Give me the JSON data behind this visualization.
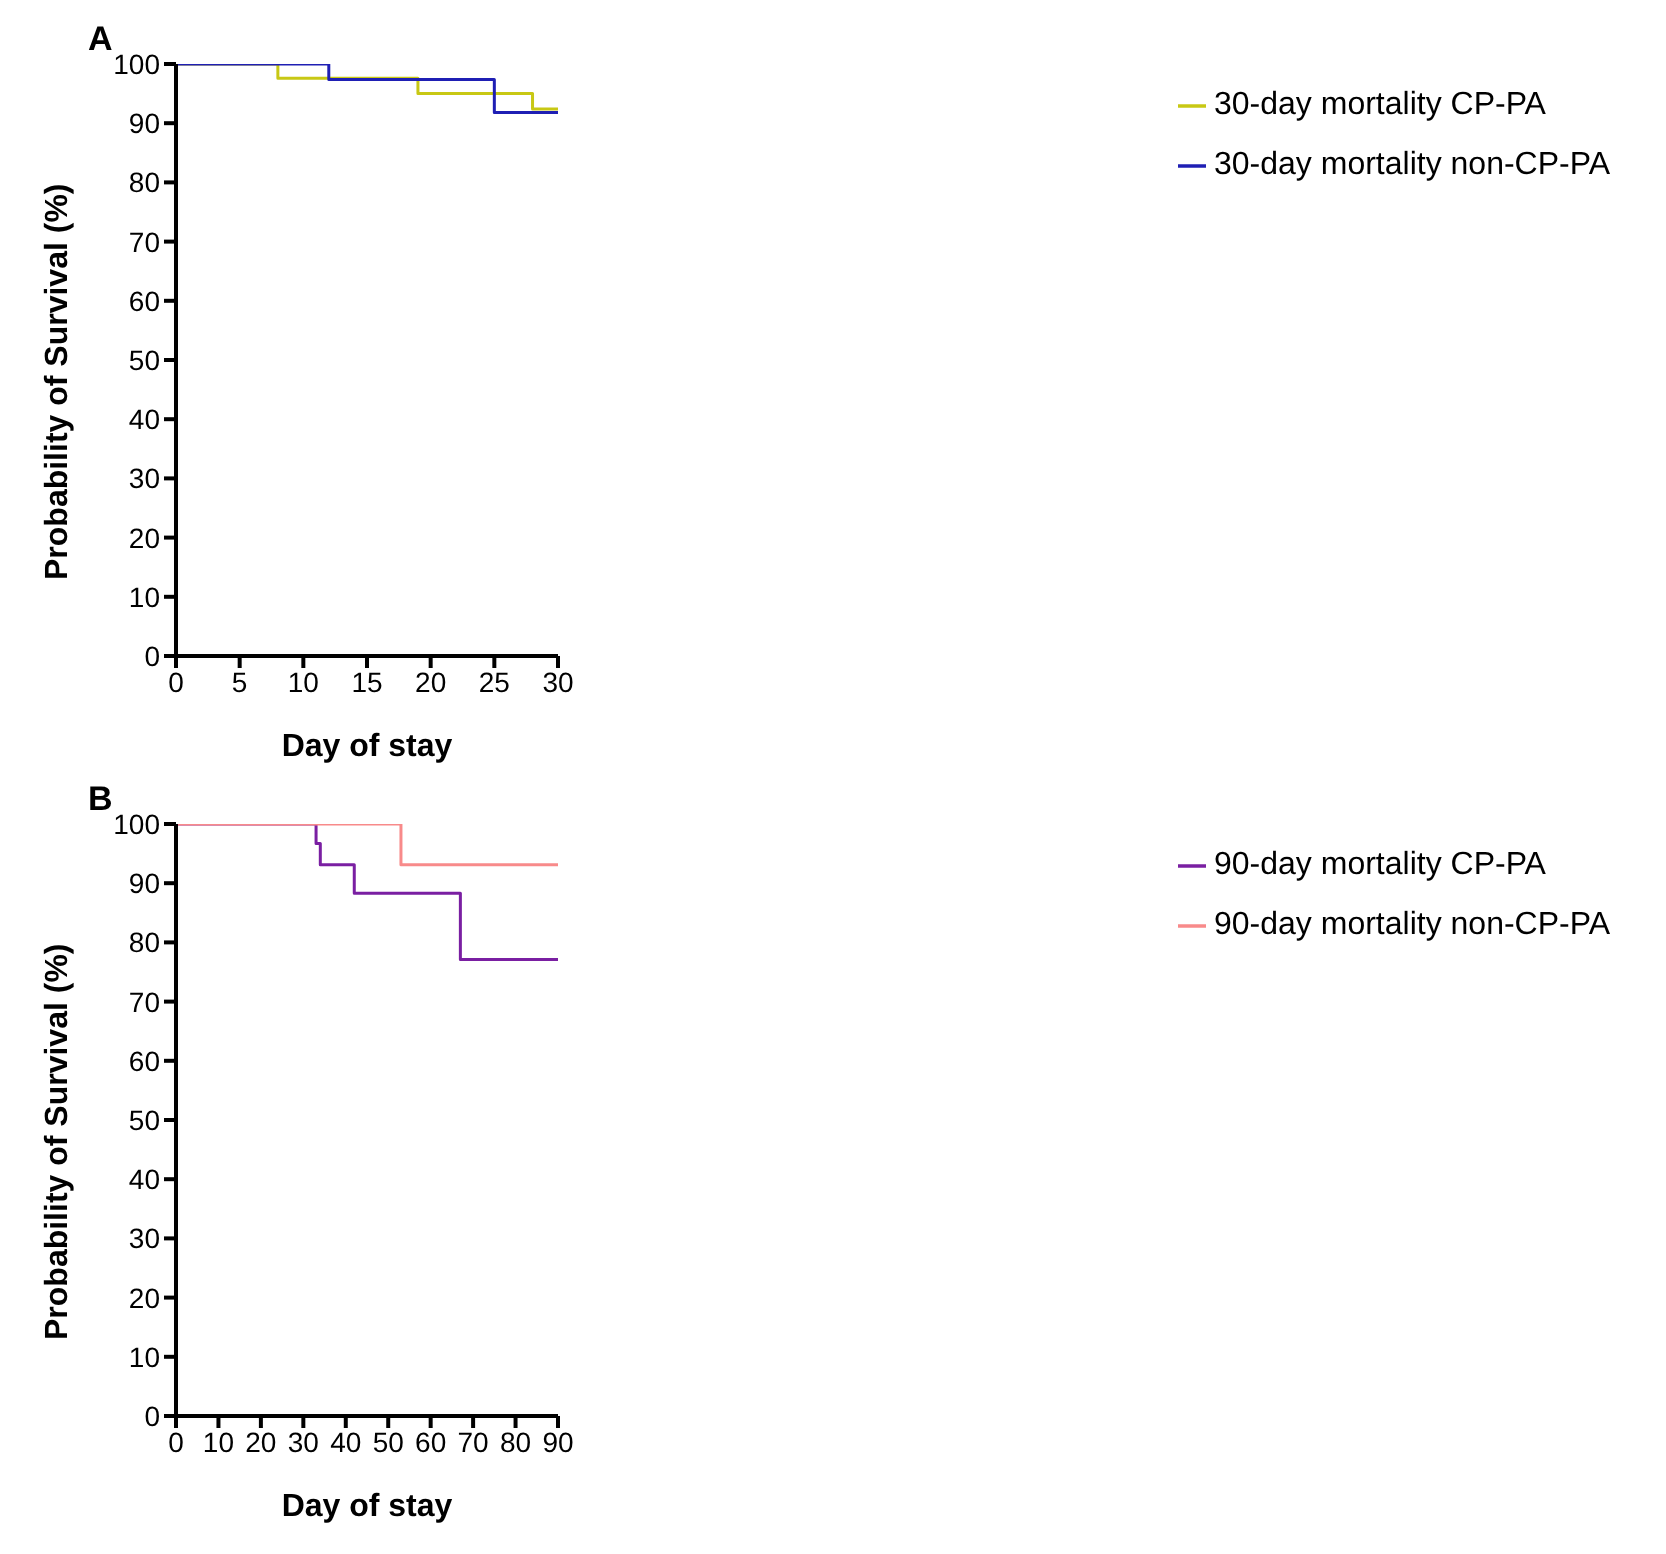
{
  "chart_data": [
    {
      "type": "step",
      "title": "A",
      "xlabel": "Day of stay",
      "ylabel": "Probability of Survival (%)",
      "xlim": [
        0,
        30
      ],
      "xticks": [
        0,
        5,
        10,
        15,
        20,
        25,
        30
      ],
      "ylim": [
        0,
        100
      ],
      "yticks": [
        0,
        10,
        20,
        30,
        40,
        50,
        60,
        70,
        80,
        90,
        100
      ],
      "legend": "top right",
      "grid": false,
      "marker": "none",
      "series": [
        {
          "name": "30-day mortality CP-PA",
          "color": "#c8c814",
          "x": [
            0,
            8,
            19,
            28,
            30
          ],
          "values": [
            100,
            97.6,
            95,
            92.4,
            92.4
          ]
        },
        {
          "name": "30-day mortality non-CP-PA",
          "color": "#1f1fb4",
          "x": [
            0,
            12,
            25,
            30
          ],
          "values": [
            100,
            97.4,
            91.8,
            91.8
          ]
        }
      ]
    },
    {
      "type": "step",
      "title": "B",
      "xlabel": "Day of stay",
      "ylabel": "Probability of Survival (%)",
      "xlim": [
        0,
        90
      ],
      "xticks": [
        0,
        10,
        20,
        30,
        40,
        50,
        60,
        70,
        80,
        90
      ],
      "ylim": [
        0,
        100
      ],
      "yticks": [
        0,
        10,
        20,
        30,
        40,
        50,
        60,
        70,
        80,
        90,
        100
      ],
      "legend": "top right",
      "grid": false,
      "marker": "none",
      "series": [
        {
          "name": "90-day mortality CP-PA",
          "color": "#7a1fa2",
          "x": [
            0,
            33,
            34,
            42,
            67,
            90
          ],
          "values": [
            100,
            96.7,
            93.1,
            88.3,
            77.1,
            77.1
          ]
        },
        {
          "name": "90-day mortality non-CP-PA",
          "color": "#f88a8a",
          "x": [
            0,
            53,
            90
          ],
          "values": [
            100,
            93.1,
            93.1
          ]
        }
      ]
    }
  ]
}
